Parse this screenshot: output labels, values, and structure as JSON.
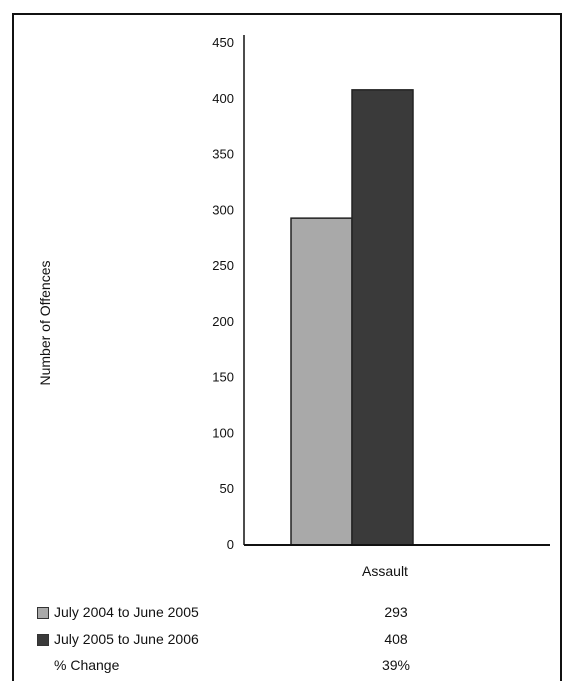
{
  "colors": {
    "series1": "#a9a9a9",
    "series2": "#3a3a3a",
    "axis": "#111111"
  },
  "chart_data": {
    "type": "bar",
    "categories": [
      "Assault"
    ],
    "series": [
      {
        "name": "July 2004 to June 2005",
        "values": [
          293
        ]
      },
      {
        "name": "July 2005 to June 2006",
        "values": [
          408
        ]
      }
    ],
    "title": "",
    "xlabel": "",
    "ylabel": "Number of Offences",
    "ylim": [
      0,
      450
    ],
    "yticks": [
      0,
      50,
      100,
      150,
      200,
      250,
      300,
      350,
      400,
      450
    ],
    "grid": false,
    "legend": "bottom-table"
  },
  "table": {
    "rows": [
      {
        "label": "July 2004 to June 2005",
        "value": "293"
      },
      {
        "label": "July 2005 to June 2006",
        "value": "408"
      },
      {
        "label": "% Change",
        "value": "39%"
      }
    ]
  }
}
